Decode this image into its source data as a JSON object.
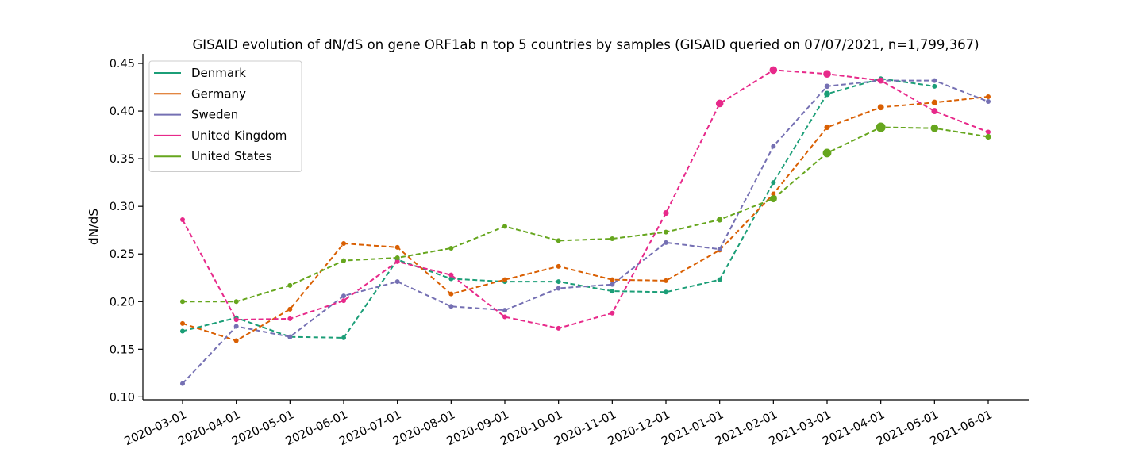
{
  "chart_data": {
    "type": "line",
    "title": "GISAID evolution of dN/dS on gene ORF1ab n top 5 countries by samples (GISAID queried on 07/07/2021, n=1,799,367)",
    "xlabel": "",
    "ylabel": "dN/dS",
    "ylim": [
      0.097,
      0.46
    ],
    "yticks": [
      0.1,
      0.15,
      0.2,
      0.25,
      0.3,
      0.35,
      0.4,
      0.45
    ],
    "ytick_labels": [
      "0.10",
      "0.15",
      "0.20",
      "0.25",
      "0.30",
      "0.35",
      "0.40",
      "0.45"
    ],
    "categories": [
      "2020-03-01",
      "2020-04-01",
      "2020-05-01",
      "2020-06-01",
      "2020-07-01",
      "2020-08-01",
      "2020-09-01",
      "2020-10-01",
      "2020-11-01",
      "2020-12-01",
      "2021-01-01",
      "2021-02-01",
      "2021-03-01",
      "2021-04-01",
      "2021-05-01",
      "2021-06-01"
    ],
    "legend_position": "top-left",
    "grid": false,
    "line_style": "dashed",
    "series": [
      {
        "name": "Denmark",
        "color": "#1b9e77",
        "values": [
          0.169,
          0.183,
          0.163,
          0.162,
          0.244,
          0.224,
          0.221,
          0.221,
          0.211,
          0.21,
          0.223,
          0.325,
          0.418,
          0.434,
          0.426,
          null
        ],
        "point_sizes": [
          1,
          1,
          1,
          1,
          1,
          1,
          1,
          1,
          1,
          1,
          1,
          1,
          1.3,
          1,
          1,
          1
        ]
      },
      {
        "name": "Germany",
        "color": "#d95f02",
        "values": [
          0.177,
          0.159,
          0.192,
          0.261,
          0.257,
          0.208,
          0.223,
          0.237,
          0.223,
          0.222,
          0.254,
          0.313,
          0.383,
          0.404,
          0.409,
          0.415
        ],
        "point_sizes": [
          1,
          1,
          1,
          1,
          1,
          1,
          1,
          1,
          1,
          1,
          1,
          1,
          1.2,
          1.3,
          1.2,
          1
        ]
      },
      {
        "name": "Sweden",
        "color": "#7570b3",
        "values": [
          0.114,
          0.174,
          0.163,
          0.206,
          0.221,
          0.195,
          0.191,
          0.214,
          0.218,
          0.262,
          0.255,
          0.363,
          0.426,
          0.432,
          0.432,
          0.41
        ],
        "point_sizes": [
          1,
          1,
          1,
          1,
          1,
          1,
          1,
          1,
          1,
          1,
          1,
          1,
          1.1,
          1,
          1,
          1
        ]
      },
      {
        "name": "United Kingdom",
        "color": "#e7298a",
        "values": [
          0.286,
          0.181,
          0.182,
          0.201,
          0.242,
          0.228,
          0.184,
          0.172,
          0.188,
          0.293,
          0.408,
          0.443,
          0.439,
          0.432,
          0.4,
          0.378
        ],
        "point_sizes": [
          1,
          1,
          1,
          1,
          1,
          1,
          1,
          1,
          1,
          1.2,
          1.6,
          1.6,
          1.6,
          1.3,
          1.3,
          1
        ]
      },
      {
        "name": "United States",
        "color": "#66a61e",
        "values": [
          0.2,
          0.2,
          0.217,
          0.243,
          0.246,
          0.256,
          0.279,
          0.264,
          0.266,
          0.273,
          0.286,
          0.308,
          0.356,
          0.383,
          0.382,
          0.373
        ],
        "point_sizes": [
          1,
          1,
          1,
          1,
          1,
          1,
          1,
          1,
          1,
          1,
          1.2,
          1.5,
          1.8,
          2.0,
          1.6,
          1.2
        ]
      }
    ]
  }
}
